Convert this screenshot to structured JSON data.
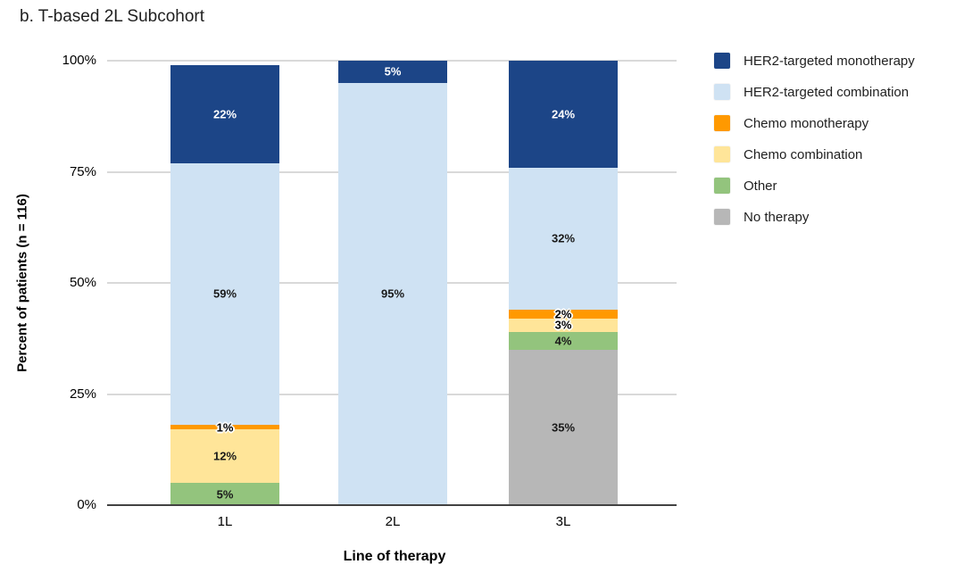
{
  "title": "b. T-based 2L Subcohort",
  "chart_data": {
    "type": "bar",
    "stacked": true,
    "title": "b. T-based 2L Subcohort",
    "xlabel": "Line of therapy",
    "ylabel": "Percent of patients (n = 116)",
    "categories": [
      "1L",
      "2L",
      "3L"
    ],
    "series": [
      {
        "name": "HER2-targeted monotherapy",
        "color": "#1C4587",
        "label_color": "#ffffff",
        "values": [
          22,
          5,
          24
        ]
      },
      {
        "name": "HER2-targeted combination",
        "color": "#CFE2F3",
        "label_color": "#1a1a1a",
        "values": [
          59,
          95,
          32
        ]
      },
      {
        "name": "Chemo monotherapy",
        "color": "#FF9900",
        "label_color": "#1a1a1a",
        "values": [
          1,
          0,
          2
        ]
      },
      {
        "name": "Chemo combination",
        "color": "#FFE599",
        "label_color": "#1a1a1a",
        "values": [
          12,
          0,
          3
        ]
      },
      {
        "name": "Other",
        "color": "#93C47D",
        "label_color": "#1a1a1a",
        "values": [
          5,
          0,
          4
        ]
      },
      {
        "name": "No therapy",
        "color": "#B7B7B7",
        "label_color": "#1a1a1a",
        "values": [
          0,
          0,
          35
        ]
      }
    ],
    "segment_labels": [
      [
        "22%",
        "5%",
        "24%"
      ],
      [
        "59%",
        "95%",
        "32%"
      ],
      [
        "1%",
        "",
        "2%"
      ],
      [
        "12%",
        "",
        "3%"
      ],
      [
        "5%",
        "",
        "4%"
      ],
      [
        "",
        "",
        "35%"
      ]
    ],
    "ylim": [
      0,
      100
    ],
    "yticks": [
      0,
      25,
      50,
      75,
      100
    ],
    "ytick_labels": [
      "0%",
      "25%",
      "50%",
      "75%",
      "100%"
    ],
    "grid": true,
    "legend_position": "right",
    "colors": {
      "gridline": "#d9d9d9",
      "axis_line": "#424242",
      "background": "#ffffff"
    }
  }
}
